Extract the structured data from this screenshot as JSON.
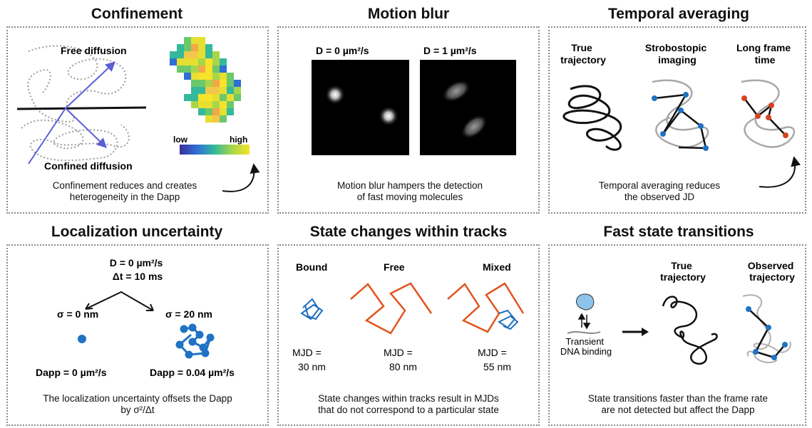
{
  "panels": [
    {
      "title": "Confinement",
      "labels": {
        "free": "Free diffusion",
        "confined": "Confined diffusion",
        "low": "low",
        "high": "high"
      },
      "caption": [
        "Confinement reduces and creates",
        "heterogeneity in the Dapp"
      ]
    },
    {
      "title": "Motion blur",
      "labels": {
        "d0": "D = 0 µm²/s",
        "d1": "D = 1 µm²/s"
      },
      "caption": [
        "Motion blur hampers the detection",
        "of fast moving molecules"
      ]
    },
    {
      "title": "Temporal averaging",
      "labels": {
        "true": [
          "True",
          "trajectory"
        ],
        "strobo": [
          "Strobostopic",
          "imaging"
        ],
        "long": [
          "Long frame",
          "time"
        ]
      },
      "caption": [
        "Temporal averaging reduces",
        "the observed JD"
      ]
    },
    {
      "title": "Localization uncertainty",
      "labels": {
        "d": "D = 0 µm²/s",
        "dt": "Δt = 10 ms",
        "s0": "σ = 0 nm",
        "s20": "σ = 20 nm",
        "dapp0": "Dapp = 0 µm²/s",
        "dapp1": "Dapp = 0.04  µm²/s"
      },
      "caption": [
        "The localization uncertainty offsets the Dapp",
        "by σ²/Δt"
      ]
    },
    {
      "title": "State changes within tracks",
      "labels": {
        "bound": "Bound",
        "free": "Free",
        "mixed": "Mixed",
        "mjd": "MJD =",
        "v1": "30 nm",
        "v2": "80 nm",
        "v3": "55 nm"
      },
      "caption": [
        "State changes within tracks result in MJDs",
        "that do not correspond to a particular state"
      ]
    },
    {
      "title": "Fast state transitions",
      "labels": {
        "true": [
          "True",
          "trajectory"
        ],
        "observed": [
          "Observed",
          "trajectory"
        ],
        "transient": [
          "Transient",
          "DNA binding"
        ]
      },
      "caption": [
        "State transitions faster than the frame rate",
        "are not detected but affect the Dapp"
      ]
    }
  ],
  "colors": {
    "arrow_blue": "#5a5fd6",
    "track_blue": "#1f6fc0",
    "track_orange": "#e2541c",
    "dot_blue": "#1f72c4",
    "dot_red": "#d6431e",
    "protein": "#8ec4ec"
  },
  "icons": [
    "curved-arrow-icon",
    "right-arrow-icon",
    "protein-icon",
    "equilibrium-arrows-icon"
  ]
}
